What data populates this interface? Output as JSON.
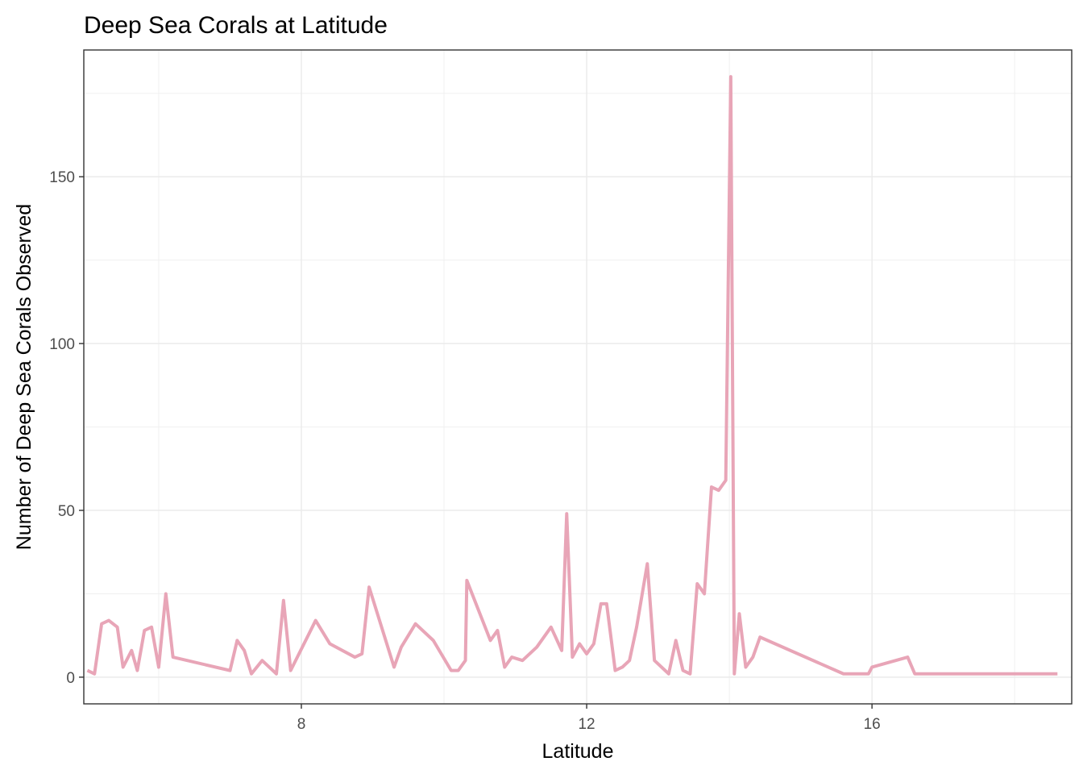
{
  "chart_data": {
    "type": "line",
    "title": "Deep Sea Corals at Latitude",
    "xlabel": "Latitude",
    "ylabel": "Number of Deep Sea Corals Observed",
    "xlim": [
      4.95,
      18.8
    ],
    "ylim": [
      -8,
      188
    ],
    "x_ticks": [
      8,
      12,
      16
    ],
    "x_tick_labels": [
      "8",
      "12",
      "16"
    ],
    "x_minor_ticks": [
      6,
      10,
      14,
      18
    ],
    "y_ticks": [
      0,
      50,
      100,
      150
    ],
    "y_tick_labels": [
      "0",
      "50",
      "100",
      "150"
    ],
    "y_minor_ticks": [
      25,
      75,
      125,
      175
    ],
    "grid": true,
    "legend": "none",
    "series": [
      {
        "color": "#E8A5B7",
        "x": [
          5.0,
          5.1,
          5.2,
          5.3,
          5.42,
          5.5,
          5.62,
          5.7,
          5.8,
          5.9,
          6.0,
          6.1,
          6.2,
          7.0,
          7.1,
          7.2,
          7.3,
          7.45,
          7.65,
          7.75,
          7.85,
          8.2,
          8.4,
          8.75,
          8.85,
          8.95,
          9.3,
          9.4,
          9.6,
          9.85,
          10.1,
          10.2,
          10.3,
          10.32,
          10.65,
          10.75,
          10.85,
          10.95,
          11.1,
          11.3,
          11.5,
          11.65,
          11.72,
          11.8,
          11.9,
          12.0,
          12.1,
          12.2,
          12.28,
          12.4,
          12.5,
          12.6,
          12.7,
          12.85,
          12.95,
          13.15,
          13.25,
          13.35,
          13.45,
          13.55,
          13.65,
          13.75,
          13.85,
          13.95,
          14.02,
          14.07,
          14.14,
          14.23,
          14.33,
          14.43,
          15.6,
          15.7,
          15.95,
          16.0,
          16.5,
          16.6,
          18.6
        ],
        "y": [
          2,
          1,
          16,
          17,
          15,
          3,
          8,
          2,
          14,
          15,
          3,
          25,
          6,
          2,
          11,
          8,
          1,
          5,
          1,
          23,
          2,
          17,
          10,
          6,
          7,
          27,
          3,
          9,
          16,
          11,
          2,
          2,
          5,
          29,
          11,
          14,
          3,
          6,
          5,
          9,
          15,
          8,
          49,
          6,
          10,
          7,
          10,
          22,
          22,
          2,
          3,
          5,
          15,
          34,
          5,
          1,
          11,
          2,
          1,
          28,
          25,
          57,
          56,
          59,
          180,
          1,
          19,
          3,
          6,
          12,
          1,
          1,
          1,
          3,
          6,
          1,
          1
        ]
      }
    ]
  }
}
